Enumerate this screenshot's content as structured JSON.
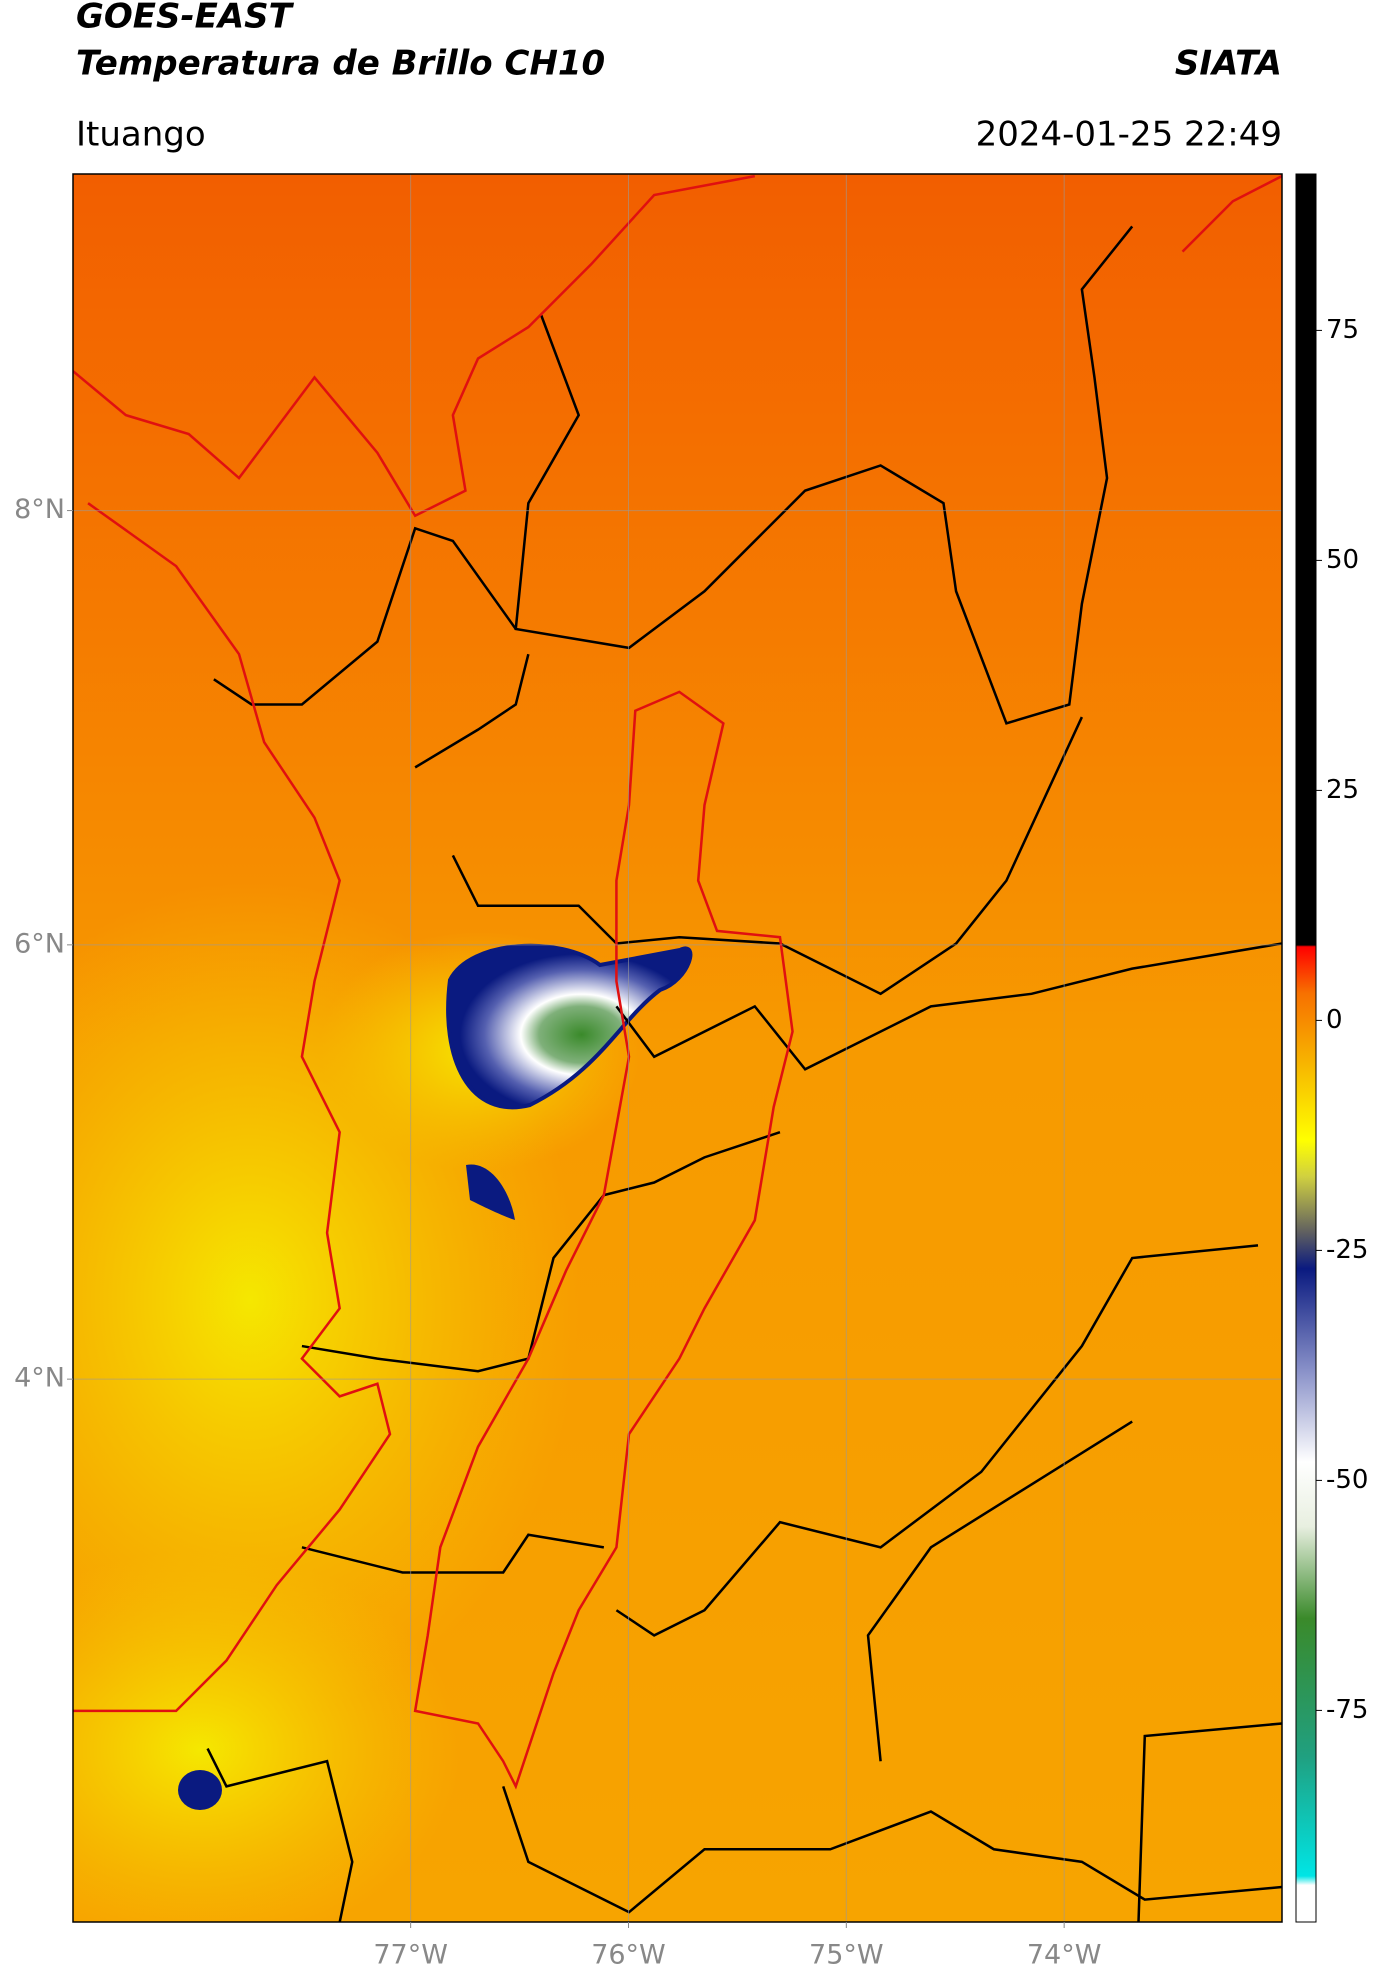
{
  "header": {
    "title": "GOES-EAST",
    "subtitle": "Temperatura de Brillo CH10",
    "source": "SIATA",
    "location": "Ituango",
    "datetime": "2024-01-25 22:49"
  },
  "map": {
    "xlim": [
      -78.55,
      -73.0
    ],
    "ylim": [
      1.5,
      9.55
    ],
    "xticks": [
      {
        "value": -77,
        "label": "77°W"
      },
      {
        "value": -76,
        "label": "76°W"
      },
      {
        "value": -75,
        "label": "75°W"
      },
      {
        "value": -74,
        "label": "74°W"
      }
    ],
    "yticks": [
      {
        "value": 8,
        "label": "8°N"
      },
      {
        "value": 6,
        "label": "6°N"
      },
      {
        "value": 4,
        "label": "4°N"
      }
    ],
    "grid": true
  },
  "colorbar": {
    "lim": [
      -98,
      92
    ],
    "ticks": [
      75,
      50,
      25,
      0,
      -25,
      -50,
      -75
    ],
    "stops": [
      {
        "value": -98,
        "color": "#ffffff"
      },
      {
        "value": -94,
        "color": "#ffffff"
      },
      {
        "value": -93,
        "color": "#00e5e5"
      },
      {
        "value": -80,
        "color": "#20a080"
      },
      {
        "value": -65,
        "color": "#3a8a2a"
      },
      {
        "value": -55,
        "color": "#e8efe0"
      },
      {
        "value": -48,
        "color": "#ffffff"
      },
      {
        "value": -38,
        "color": "#8890c8"
      },
      {
        "value": -27,
        "color": "#0a1a80"
      },
      {
        "value": -23,
        "color": "#606060"
      },
      {
        "value": -17,
        "color": "#d0d040"
      },
      {
        "value": -13,
        "color": "#ffff00"
      },
      {
        "value": -5,
        "color": "#f7b800"
      },
      {
        "value": 3,
        "color": "#f77000"
      },
      {
        "value": 8,
        "color": "#ff0000"
      },
      {
        "value": 8.2,
        "color": "#000000"
      },
      {
        "value": 92,
        "color": "#000000"
      }
    ]
  }
}
